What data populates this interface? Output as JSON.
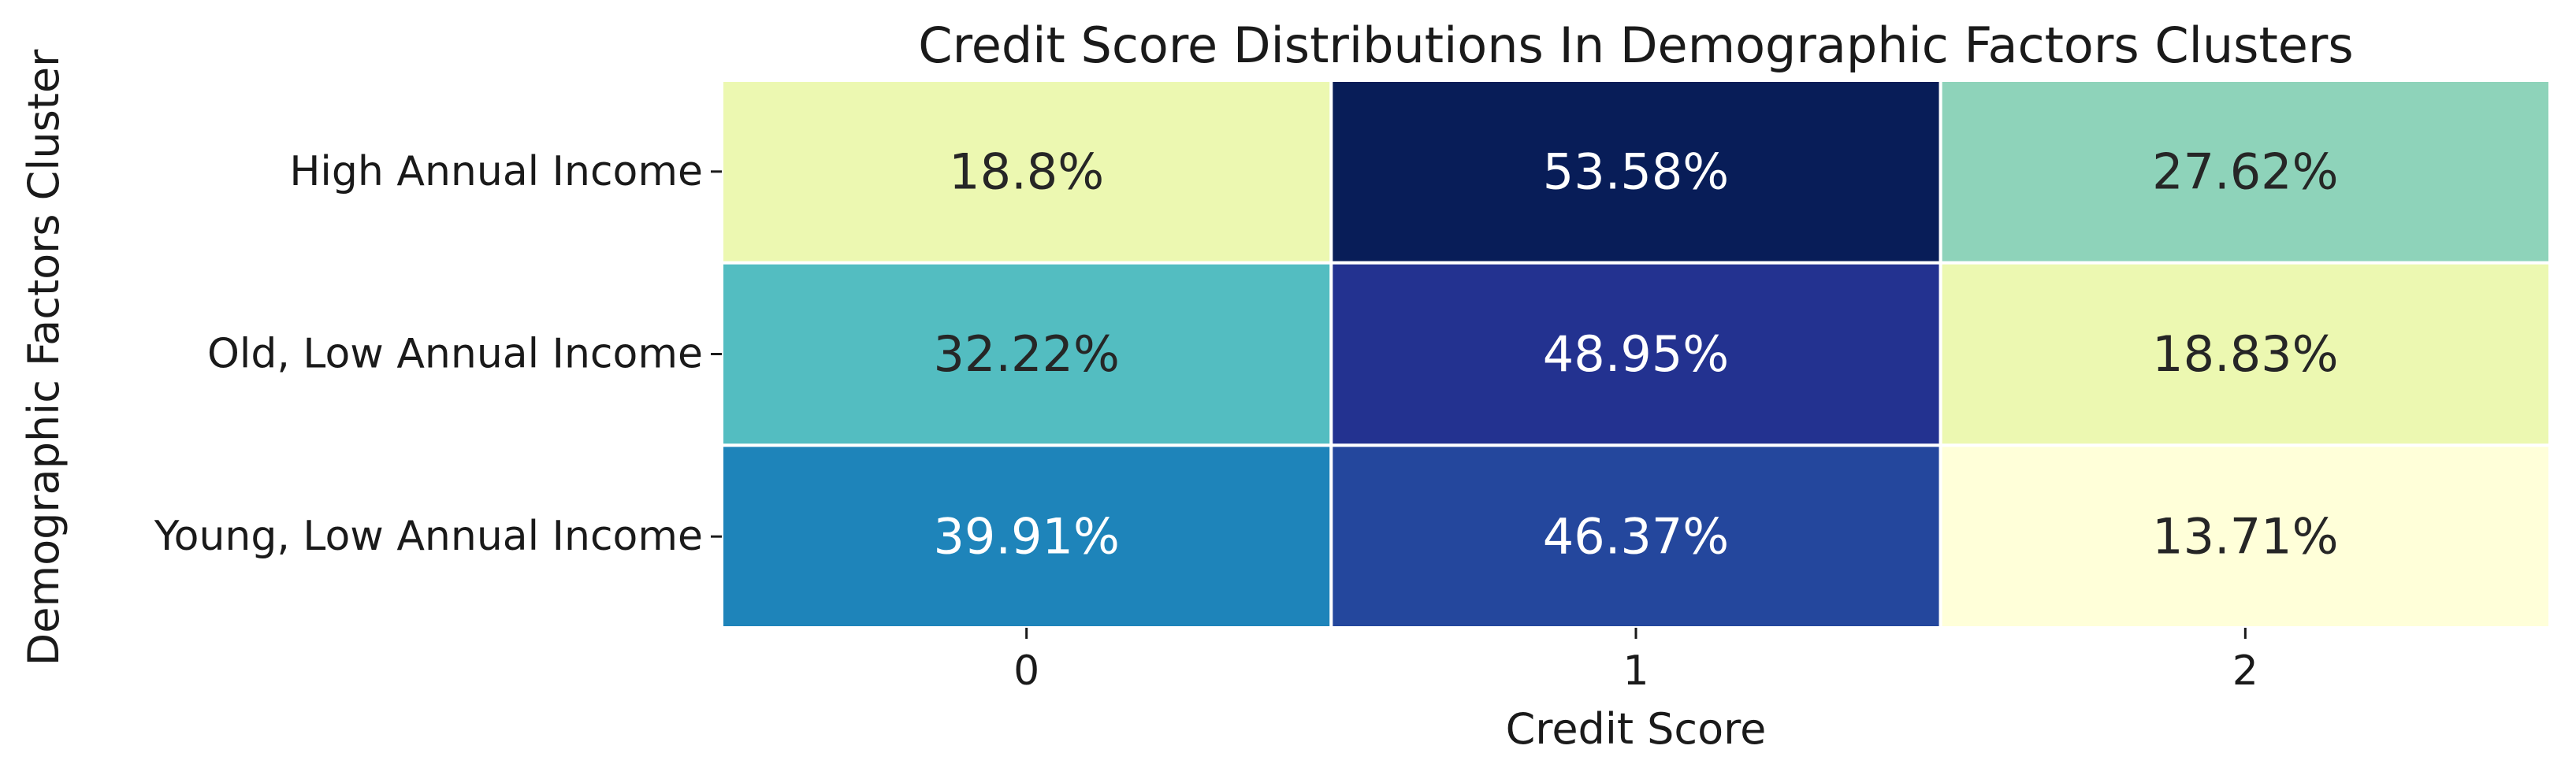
{
  "chart_data": {
    "type": "heatmap",
    "title": "Credit Score Distributions In Demographic Factors Clusters",
    "xlabel": "Credit Score",
    "ylabel": "Demographic Factors Cluster",
    "x_categories": [
      "0",
      "1",
      "2"
    ],
    "y_categories": [
      "High Annual Income",
      "Old, Low Annual Income",
      "Young, Low Annual Income"
    ],
    "values": [
      [
        18.8,
        53.58,
        27.62
      ],
      [
        32.22,
        48.95,
        18.83
      ],
      [
        39.91,
        46.37,
        13.71
      ]
    ],
    "value_labels": [
      [
        "18.8%",
        "53.58%",
        "27.62%"
      ],
      [
        "32.22%",
        "48.95%",
        "18.83%"
      ],
      [
        "39.91%",
        "46.37%",
        "13.71%"
      ]
    ],
    "colormap": "YlGnBu",
    "colorbar": false,
    "vmin": 13.71,
    "vmax": 53.58,
    "grid_line_color": "#ffffff"
  }
}
